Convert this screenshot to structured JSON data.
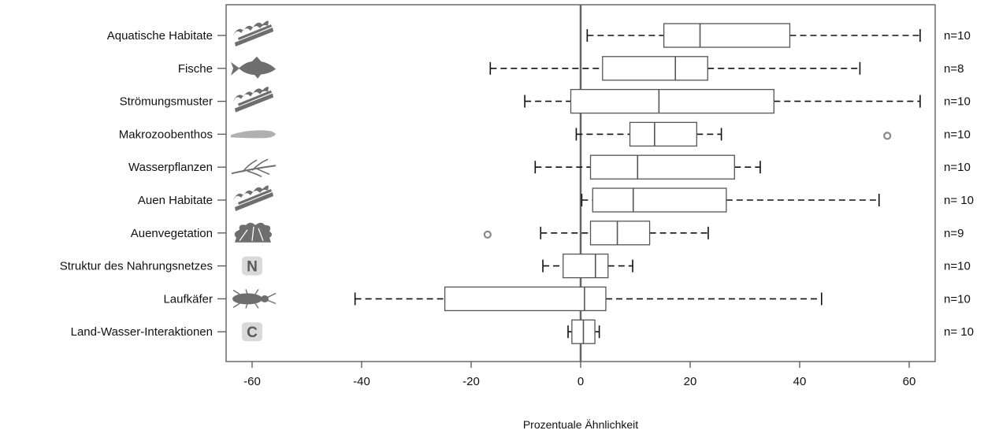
{
  "chart_data": {
    "type": "boxplot",
    "orientation": "horizontal",
    "title": "",
    "xlabel": "Prozentuale Ähnlichkeit",
    "ylabel": "",
    "xlim": [
      -65,
      65
    ],
    "xticks": [
      -60,
      -40,
      -20,
      0,
      20,
      40,
      60
    ],
    "reference_line": 0,
    "grid": false,
    "legend": "none",
    "colors": {
      "box_stroke": "#555555",
      "whisker": "#111111",
      "outlier": "#888888",
      "icon": "#6e6e6e",
      "icon_light": "#b0b0b0"
    },
    "categories": [
      {
        "label": "Aquatische Habitate",
        "icon": "habitat-icon",
        "whisker_low": 1.2,
        "q1": 15.2,
        "median": 21.8,
        "q3": 38.2,
        "whisker_high": 62,
        "outliers": [],
        "n": "n=10"
      },
      {
        "label": "Fische",
        "icon": "fish-icon",
        "whisker_low": -16.5,
        "q1": 4.0,
        "median": 17.3,
        "q3": 23.2,
        "whisker_high": 51,
        "outliers": [],
        "n": "n=8"
      },
      {
        "label": "Strömungsmuster",
        "icon": "habitat-icon",
        "whisker_low": -10.2,
        "q1": -1.8,
        "median": 14.3,
        "q3": 35.3,
        "whisker_high": 62,
        "outliers": [],
        "n": "n=10"
      },
      {
        "label": "Makrozoobenthos",
        "icon": "worm-icon",
        "whisker_low": -0.8,
        "q1": 9.0,
        "median": 13.5,
        "q3": 21.2,
        "whisker_high": 25.7,
        "outliers": [
          56
        ],
        "n": "n=10"
      },
      {
        "label": "Wasserpflanzen",
        "icon": "plant-icon",
        "whisker_low": -8.3,
        "q1": 1.8,
        "median": 10.4,
        "q3": 28.1,
        "whisker_high": 32.8,
        "outliers": [],
        "n": "n=10"
      },
      {
        "label": "Auen Habitate",
        "icon": "habitat-icon",
        "whisker_low": 0.2,
        "q1": 2.2,
        "median": 9.6,
        "q3": 26.6,
        "whisker_high": 54.5,
        "outliers": [],
        "n": "n= 10"
      },
      {
        "label": "Auenvegetation",
        "icon": "shrub-icon",
        "whisker_low": -7.3,
        "q1": 1.8,
        "median": 6.7,
        "q3": 12.6,
        "whisker_high": 23.3,
        "outliers": [
          -17
        ],
        "n": "n=9"
      },
      {
        "label": "Struktur des Nahrungsnetzes",
        "icon": "letter-n-icon",
        "icon_text": "N",
        "whisker_low": -6.9,
        "q1": -3.2,
        "median": 2.7,
        "q3": 5.0,
        "whisker_high": 9.5,
        "outliers": [],
        "n": "n=10"
      },
      {
        "label": "Laufkäfer",
        "icon": "beetle-icon",
        "whisker_low": -41.2,
        "q1": -24.8,
        "median": 0.7,
        "q3": 4.6,
        "whisker_high": 44,
        "outliers": [],
        "n": "n=10"
      },
      {
        "label": "Land-Wasser-Interaktionen",
        "icon": "letter-c-icon",
        "icon_text": "C",
        "whisker_low": -2.3,
        "q1": -1.6,
        "median": 0.5,
        "q3": 2.6,
        "whisker_high": 3.4,
        "outliers": [],
        "n": "n= 10"
      }
    ]
  }
}
